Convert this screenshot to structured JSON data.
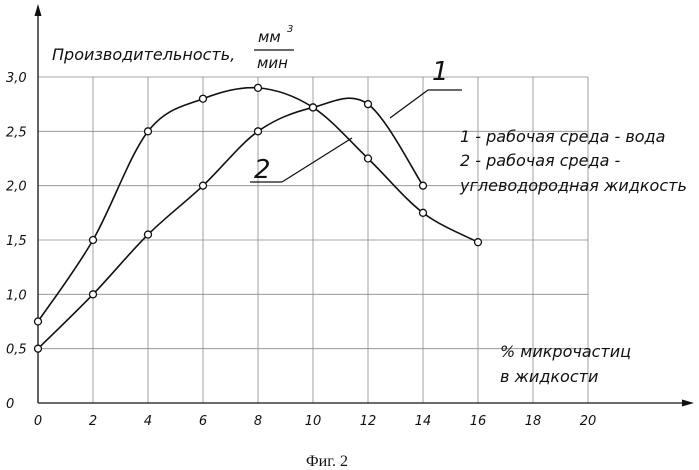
{
  "chart_data": {
    "type": "line",
    "ylabel_main": "Производительность,",
    "ylabel_unit_top": "мм",
    "ylabel_unit_exp": "3",
    "ylabel_unit_bottom": "мин",
    "xlabel_line1": "% микрочастиц",
    "xlabel_line2": "в жидкости",
    "xlim": [
      0,
      20
    ],
    "ylim": [
      0,
      3.0
    ],
    "x_ticks": [
      "0",
      "2",
      "4",
      "6",
      "8",
      "10",
      "12",
      "14",
      "16",
      "18",
      "20"
    ],
    "y_ticks": [
      {
        "value": 0,
        "label": "0"
      },
      {
        "value": 0.5,
        "label": "0,5"
      },
      {
        "value": 1.0,
        "label": "1,0"
      },
      {
        "value": 1.5,
        "label": "1,5"
      },
      {
        "value": 2.0,
        "label": "2,0"
      },
      {
        "value": 2.5,
        "label": "2,5"
      },
      {
        "value": 3.0,
        "label": "3,0"
      }
    ],
    "grid": true,
    "series": [
      {
        "name": "1",
        "x": [
          0,
          2,
          4,
          6,
          8,
          10,
          12,
          14,
          16
        ],
        "y": [
          0.75,
          1.5,
          2.5,
          2.8,
          2.9,
          2.72,
          2.25,
          1.75,
          1.48
        ]
      },
      {
        "name": "2",
        "x": [
          0,
          2,
          4,
          6,
          8,
          10,
          12,
          14
        ],
        "y": [
          0.5,
          1.0,
          1.55,
          2.0,
          2.5,
          2.72,
          2.75,
          2.0
        ]
      }
    ],
    "legend_line1": "1 - рабочая среда - вода",
    "legend_line2": "2 - рабочая среда -",
    "legend_line3": "углеводородная жидкость"
  },
  "caption": "Фиг. 2"
}
